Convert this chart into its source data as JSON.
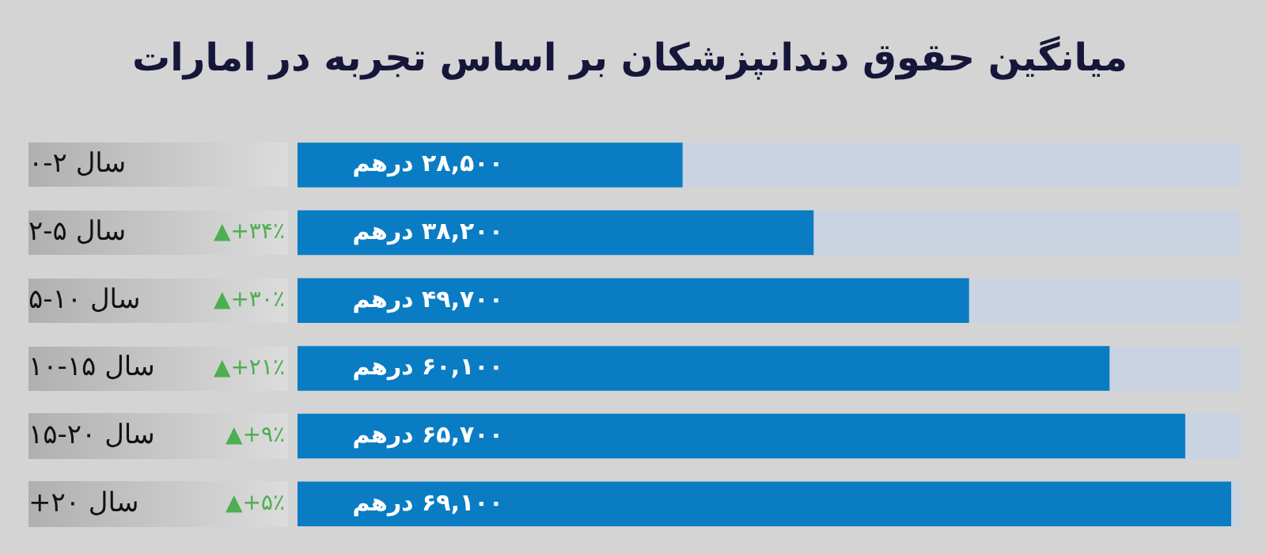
{
  "chart_data": {
    "type": "bar",
    "orientation": "horizontal",
    "title": "میانگین حقوق دندانپزشکان بر اساس تجربه در امارات",
    "categories": [
      "۰-۲ سال",
      "۲-۵ سال",
      "۵-۱۰ سال",
      "۱۰-۱۵ سال",
      "۱۵-۲۰ سال",
      "+۲۰ سال"
    ],
    "values": [
      28500,
      38200,
      49700,
      60100,
      65700,
      69100
    ],
    "value_labels": [
      "۲۸,۵۰۰ درهم",
      "۳۸,۲۰۰ درهم",
      "۴۹,۷۰۰ درهم",
      "۶۰,۱۰۰ درهم",
      "۶۵,۷۰۰ درهم",
      "۶۹,۱۰۰ درهم"
    ],
    "color": "#0a7cc4",
    "legend": false,
    "annotations": [
      "▲+۳۴٪",
      "▲+۳۰٪",
      "▲+۲۱٪",
      "▲+۹٪",
      "▲+۵٪"
    ]
  }
}
